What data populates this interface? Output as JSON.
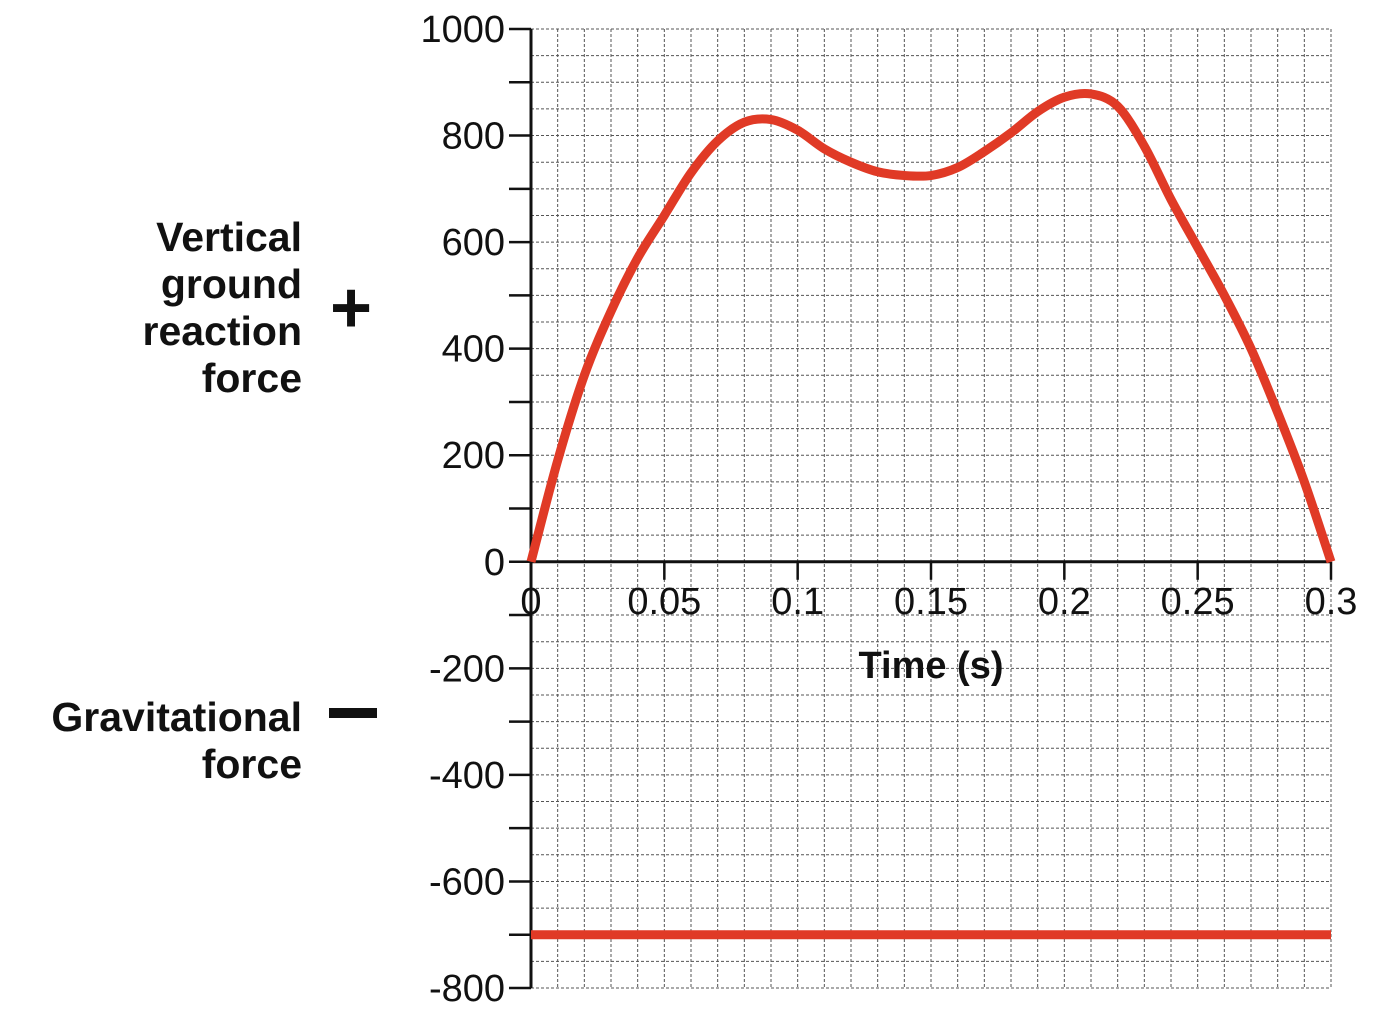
{
  "labels": {
    "vgrf": [
      "Vertical",
      "ground",
      "reaction",
      "force"
    ],
    "vgrf_sign": "+",
    "gravity": [
      "Gravitational",
      "force"
    ],
    "gravity_sign": "−"
  },
  "chart_data": {
    "type": "line",
    "xlabel": "Time (s)",
    "ylabel": "",
    "title": "",
    "xlim": [
      0,
      0.3
    ],
    "ylim": [
      -800,
      1000
    ],
    "x_ticks": [
      "0",
      "0.05",
      "0.1",
      "0.15",
      "0.2",
      "0.25",
      "0.3"
    ],
    "y_ticks": [
      "1000",
      "800",
      "600",
      "400",
      "200",
      "0",
      "-200",
      "-400",
      "-600",
      "-800"
    ],
    "grid": true,
    "line_color": "#e03a26",
    "series": [
      {
        "x": [
          0,
          0.01,
          0.02,
          0.03,
          0.04,
          0.05,
          0.06,
          0.07,
          0.08,
          0.09,
          0.1,
          0.11,
          0.12,
          0.13,
          0.14,
          0.15,
          0.16,
          0.17,
          0.18,
          0.19,
          0.2,
          0.21,
          0.22,
          0.23,
          0.24,
          0.25,
          0.26,
          0.27,
          0.28,
          0.29,
          0.3
        ],
        "values": [
          0,
          190,
          350,
          470,
          570,
          650,
          730,
          790,
          825,
          830,
          810,
          775,
          750,
          732,
          725,
          725,
          740,
          770,
          805,
          845,
          872,
          878,
          855,
          780,
          680,
          590,
          500,
          400,
          280,
          150,
          0
        ]
      },
      {
        "x": [
          0,
          0.3
        ],
        "values": [
          -700,
          -700
        ]
      }
    ]
  }
}
